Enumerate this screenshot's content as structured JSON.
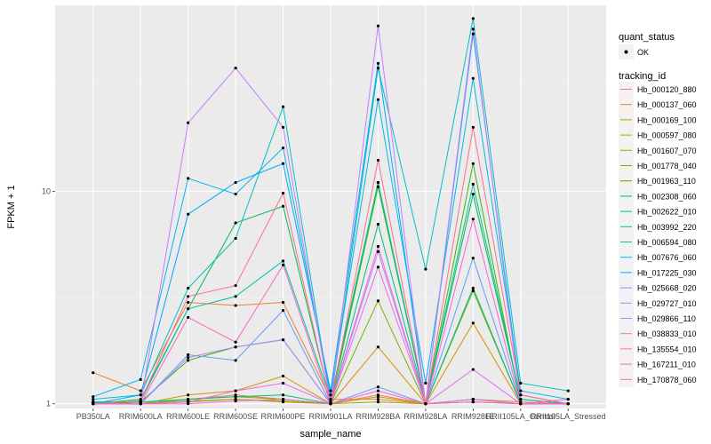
{
  "chart_data": {
    "type": "line",
    "xlabel": "sample_name",
    "ylabel": "FPKM + 1",
    "y_scale": "log10",
    "ylim": [
      0.95,
      75
    ],
    "y_ticks": [
      1,
      10
    ],
    "x": [
      "PB350LA",
      "RRIM600LA",
      "RRIM600LE",
      "RRIM600SE",
      "RRIM600PE",
      "RRIM901LA",
      "RRIM928BA",
      "RRIM928LA",
      "RRIM928LE",
      "RRII105LA_Control",
      "RRII105LA_Stressed"
    ],
    "legend_shape_title": "quant_status",
    "legend_shape_entry": "OK",
    "legend_color_title": "tracking_id",
    "legend_position": "right",
    "grid": true,
    "series": [
      {
        "name": "Hb_000120_880",
        "color": "#F8766D",
        "values": [
          1.02,
          1.0,
          1.05,
          1.1,
          1.05,
          1.0,
          1.1,
          1.0,
          1.05,
          1.0,
          1.0
        ]
      },
      {
        "name": "Hb_000137_060",
        "color": "#EA8331",
        "values": [
          1.4,
          1.15,
          3.0,
          2.9,
          3.0,
          1.05,
          1.05,
          1.0,
          1.05,
          1.02,
          1.0
        ]
      },
      {
        "name": "Hb_000169_100",
        "color": "#D89000",
        "values": [
          1.0,
          1.0,
          1.1,
          1.15,
          1.35,
          1.0,
          1.85,
          1.0,
          2.4,
          1.0,
          1.0
        ]
      },
      {
        "name": "Hb_000597_080",
        "color": "#C09B00",
        "values": [
          1.01,
          1.0,
          1.02,
          1.05,
          1.02,
          1.0,
          1.08,
          1.0,
          1.05,
          1.0,
          1.0
        ]
      },
      {
        "name": "Hb_001607_070",
        "color": "#A3A500",
        "values": [
          1.0,
          1.0,
          1.03,
          1.05,
          1.03,
          1.0,
          1.02,
          1.0,
          1.02,
          1.0,
          1.0
        ]
      },
      {
        "name": "Hb_001778_040",
        "color": "#7CAE00",
        "values": [
          1.0,
          1.0,
          1.05,
          1.08,
          1.05,
          1.0,
          3.05,
          1.0,
          3.4,
          1.0,
          1.0
        ]
      },
      {
        "name": "Hb_001963_110",
        "color": "#39B600",
        "values": [
          1.0,
          1.02,
          1.6,
          1.85,
          2.0,
          1.0,
          10.5,
          1.0,
          13.5,
          1.0,
          1.0
        ]
      },
      {
        "name": "Hb_002308_060",
        "color": "#00BB4E",
        "values": [
          1.0,
          1.05,
          2.8,
          7.1,
          8.5,
          1.02,
          11.0,
          1.0,
          9.7,
          1.05,
          1.0
        ]
      },
      {
        "name": "Hb_002622_010",
        "color": "#00BF7D",
        "values": [
          1.02,
          1.02,
          1.05,
          1.08,
          1.1,
          1.0,
          7.0,
          1.0,
          3.5,
          1.0,
          1.0
        ]
      },
      {
        "name": "Hb_003992_220",
        "color": "#00C1A3",
        "values": [
          1.0,
          1.03,
          2.8,
          3.2,
          4.7,
          1.05,
          11.0,
          1.0,
          10.8,
          1.05,
          1.0
        ]
      },
      {
        "name": "Hb_006594_080",
        "color": "#00BFC4",
        "values": [
          1.05,
          1.1,
          3.5,
          6.0,
          25.0,
          1.02,
          38.0,
          4.3,
          65.0,
          1.25,
          1.15
        ]
      },
      {
        "name": "Hb_007676_060",
        "color": "#00B8E7",
        "values": [
          1.08,
          1.3,
          11.5,
          9.7,
          16.0,
          1.1,
          27.0,
          1.25,
          34.0,
          1.15,
          1.05
        ]
      },
      {
        "name": "Hb_017225_030",
        "color": "#00A9FF",
        "values": [
          1.0,
          1.1,
          7.8,
          11.0,
          13.5,
          1.15,
          40.0,
          1.0,
          55.0,
          1.1,
          1.0
        ]
      },
      {
        "name": "Hb_025668_020",
        "color": "#619CFF",
        "values": [
          1.0,
          1.0,
          1.7,
          1.6,
          2.75,
          1.0,
          1.2,
          1.0,
          4.85,
          1.0,
          1.0
        ]
      },
      {
        "name": "Hb_029727_010",
        "color": "#AE87FF",
        "values": [
          1.0,
          1.0,
          1.65,
          1.85,
          2.0,
          1.0,
          5.2,
          1.0,
          1.05,
          1.0,
          1.0
        ]
      },
      {
        "name": "Hb_029866_110",
        "color": "#C77CFF",
        "values": [
          1.0,
          1.0,
          21.0,
          38.0,
          20.0,
          1.0,
          60.0,
          1.0,
          58.0,
          1.0,
          1.0
        ]
      },
      {
        "name": "Hb_038833_010",
        "color": "#E76BF3",
        "values": [
          1.0,
          1.0,
          1.02,
          1.15,
          1.25,
          1.0,
          4.4,
          1.0,
          1.45,
          1.0,
          1.0
        ]
      },
      {
        "name": "Hb_135554_010",
        "color": "#FA62DB",
        "values": [
          1.0,
          1.0,
          1.0,
          1.03,
          1.05,
          1.0,
          5.5,
          1.0,
          7.4,
          1.0,
          1.0
        ]
      },
      {
        "name": "Hb_167211_010",
        "color": "#FF62BC",
        "values": [
          1.0,
          1.0,
          2.55,
          1.95,
          4.5,
          1.0,
          1.15,
          1.0,
          1.02,
          1.0,
          1.05
        ]
      },
      {
        "name": "Hb_170878_060",
        "color": "#FF6C91",
        "values": [
          1.0,
          1.03,
          3.2,
          3.6,
          9.8,
          1.0,
          14.0,
          1.0,
          20.0,
          1.1,
          1.0
        ]
      }
    ]
  }
}
